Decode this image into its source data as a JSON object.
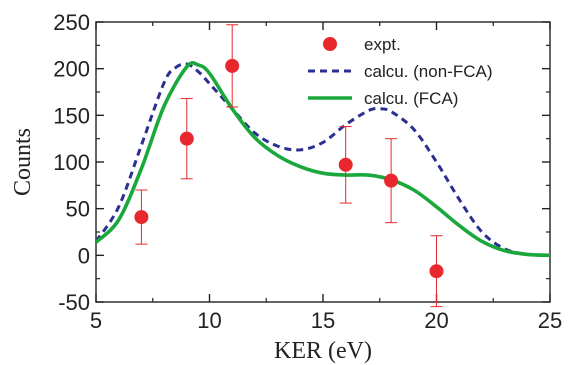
{
  "chart_data": {
    "type": "line",
    "title": "",
    "xlabel": "KER (eV)",
    "ylabel": "Counts",
    "xlim": [
      5,
      25
    ],
    "ylim": [
      -50,
      250
    ],
    "x_ticks": [
      "5",
      "10",
      "15",
      "20",
      "25"
    ],
    "y_ticks": [
      "-50",
      "0",
      "50",
      "100",
      "150",
      "200",
      "250"
    ],
    "grid": false,
    "legend_position": "top-right",
    "series": [
      {
        "name": "expt.",
        "kind": "scatter-errorbar",
        "color": "#e8282d",
        "points": [
          {
            "x": 7,
            "y": 41,
            "err": 29
          },
          {
            "x": 9,
            "y": 125,
            "err": 43
          },
          {
            "x": 11,
            "y": 203,
            "err": 44
          },
          {
            "x": 16,
            "y": 97,
            "err": 41
          },
          {
            "x": 18,
            "y": 80,
            "err": 45
          },
          {
            "x": 20,
            "y": -17,
            "err": 38
          }
        ]
      },
      {
        "name": "calcu. (non-FCA)",
        "kind": "line",
        "style": "dashed",
        "color": "#2b2f8f",
        "x": [
          5,
          6,
          7,
          8,
          8.5,
          9,
          9.5,
          10,
          11,
          12,
          13,
          14,
          15,
          16,
          17,
          17.5,
          18,
          19,
          20,
          21,
          22,
          23,
          24,
          25
        ],
        "y": [
          15,
          52,
          118,
          185,
          201,
          205,
          197,
          184,
          157,
          131,
          117,
          113,
          121,
          140,
          155,
          157,
          154,
          135,
          100,
          60,
          25,
          7,
          1,
          0
        ]
      },
      {
        "name": "calcu. (FCA)",
        "kind": "line",
        "style": "solid",
        "color": "#1aa83c",
        "x": [
          5,
          6,
          7,
          8,
          9,
          9.5,
          10,
          11,
          12,
          13,
          14,
          15,
          16,
          17,
          18,
          19,
          20,
          21,
          22,
          23,
          24,
          25
        ],
        "y": [
          14,
          38,
          93,
          160,
          202,
          204,
          195,
          157,
          126,
          107,
          95,
          88,
          86,
          86,
          81,
          70,
          52,
          32,
          15,
          5,
          1,
          0
        ]
      }
    ]
  }
}
